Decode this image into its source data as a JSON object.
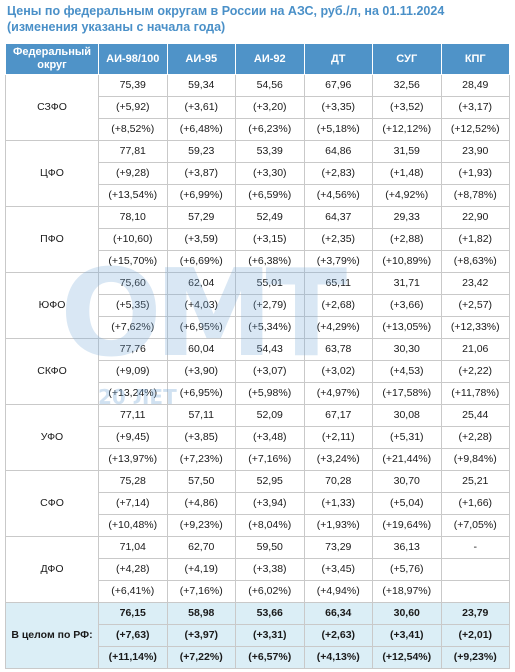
{
  "title": {
    "line1": "Цены по федеральным округам в России на АЗС, руб./л, на 01.11.2024",
    "line2": "(изменения указаны с начала года)"
  },
  "watermark": {
    "logo": "ОМТ",
    "years": "20 ЛЕТ"
  },
  "table": {
    "headers": [
      "Федеральный округ",
      "АИ-98/100",
      "АИ-95",
      "АИ-92",
      "ДТ",
      "СУГ",
      "КПГ"
    ],
    "rows": [
      {
        "region": "СЗФО",
        "cells": [
          {
            "price": "75,39",
            "abs": "(+5,92)",
            "pct": "(+8,52%)"
          },
          {
            "price": "59,34",
            "abs": "(+3,61)",
            "pct": "(+6,48%)"
          },
          {
            "price": "54,56",
            "abs": "(+3,20)",
            "pct": "(+6,23%)"
          },
          {
            "price": "67,96",
            "abs": "(+3,35)",
            "pct": "(+5,18%)"
          },
          {
            "price": "32,56",
            "abs": "(+3,52)",
            "pct": "(+12,12%)"
          },
          {
            "price": "28,49",
            "abs": "(+3,17)",
            "pct": "(+12,52%)"
          }
        ]
      },
      {
        "region": "ЦФО",
        "cells": [
          {
            "price": "77,81",
            "abs": "(+9,28)",
            "pct": "(+13,54%)"
          },
          {
            "price": "59,23",
            "abs": "(+3,87)",
            "pct": "(+6,99%)"
          },
          {
            "price": "53,39",
            "abs": "(+3,30)",
            "pct": "(+6,59%)"
          },
          {
            "price": "64,86",
            "abs": "(+2,83)",
            "pct": "(+4,56%)"
          },
          {
            "price": "31,59",
            "abs": "(+1,48)",
            "pct": "(+4,92%)"
          },
          {
            "price": "23,90",
            "abs": "(+1,93)",
            "pct": "(+8,78%)"
          }
        ]
      },
      {
        "region": "ПФО",
        "cells": [
          {
            "price": "78,10",
            "abs": "(+10,60)",
            "pct": "(+15,70%)"
          },
          {
            "price": "57,29",
            "abs": "(+3,59)",
            "pct": "(+6,69%)"
          },
          {
            "price": "52,49",
            "abs": "(+3,15)",
            "pct": "(+6,38%)"
          },
          {
            "price": "64,37",
            "abs": "(+2,35)",
            "pct": "(+3,79%)"
          },
          {
            "price": "29,33",
            "abs": "(+2,88)",
            "pct": "(+10,89%)"
          },
          {
            "price": "22,90",
            "abs": "(+1,82)",
            "pct": "(+8,63%)"
          }
        ]
      },
      {
        "region": "ЮФО",
        "cells": [
          {
            "price": "75,60",
            "abs": "(+5,35)",
            "pct": "(+7,62%)"
          },
          {
            "price": "62,04",
            "abs": "(+4,03)",
            "pct": "(+6,95%)"
          },
          {
            "price": "55,01",
            "abs": "(+2,79)",
            "pct": "(+5,34%)"
          },
          {
            "price": "65,11",
            "abs": "(+2,68)",
            "pct": "(+4,29%)"
          },
          {
            "price": "31,71",
            "abs": "(+3,66)",
            "pct": "(+13,05%)"
          },
          {
            "price": "23,42",
            "abs": "(+2,57)",
            "pct": "(+12,33%)"
          }
        ]
      },
      {
        "region": "СКФО",
        "cells": [
          {
            "price": "77,76",
            "abs": "(+9,09)",
            "pct": "(+13,24%)"
          },
          {
            "price": "60,04",
            "abs": "(+3,90)",
            "pct": "(+6,95%)"
          },
          {
            "price": "54,43",
            "abs": "(+3,07)",
            "pct": "(+5,98%)"
          },
          {
            "price": "63,78",
            "abs": "(+3,02)",
            "pct": "(+4,97%)"
          },
          {
            "price": "30,30",
            "abs": "(+4,53)",
            "pct": "(+17,58%)"
          },
          {
            "price": "21,06",
            "abs": "(+2,22)",
            "pct": "(+11,78%)"
          }
        ]
      },
      {
        "region": "УФО",
        "cells": [
          {
            "price": "77,11",
            "abs": "(+9,45)",
            "pct": "(+13,97%)"
          },
          {
            "price": "57,11",
            "abs": "(+3,85)",
            "pct": "(+7,23%)"
          },
          {
            "price": "52,09",
            "abs": "(+3,48)",
            "pct": "(+7,16%)"
          },
          {
            "price": "67,17",
            "abs": "(+2,11)",
            "pct": "(+3,24%)"
          },
          {
            "price": "30,08",
            "abs": "(+5,31)",
            "pct": "(+21,44%)"
          },
          {
            "price": "25,44",
            "abs": "(+2,28)",
            "pct": "(+9,84%)"
          }
        ]
      },
      {
        "region": "СФО",
        "cells": [
          {
            "price": "75,28",
            "abs": "(+7,14)",
            "pct": "(+10,48%)"
          },
          {
            "price": "57,50",
            "abs": "(+4,86)",
            "pct": "(+9,23%)"
          },
          {
            "price": "52,95",
            "abs": "(+3,94)",
            "pct": "(+8,04%)"
          },
          {
            "price": "70,28",
            "abs": "(+1,33)",
            "pct": "(+1,93%)"
          },
          {
            "price": "30,70",
            "abs": "(+5,04)",
            "pct": "(+19,64%)"
          },
          {
            "price": "25,21",
            "abs": "(+1,66)",
            "pct": "(+7,05%)"
          }
        ]
      },
      {
        "region": "ДФО",
        "cells": [
          {
            "price": "71,04",
            "abs": "(+4,28)",
            "pct": "(+6,41%)"
          },
          {
            "price": "62,70",
            "abs": "(+4,19)",
            "pct": "(+7,16%)"
          },
          {
            "price": "59,50",
            "abs": "(+3,38)",
            "pct": "(+6,02%)"
          },
          {
            "price": "73,29",
            "abs": "(+3,45)",
            "pct": "(+4,94%)"
          },
          {
            "price": "36,13",
            "abs": "(+5,76)",
            "pct": "(+18,97%)"
          },
          {
            "price": "-",
            "abs": "",
            "pct": ""
          }
        ]
      }
    ],
    "total": {
      "region": "В целом по РФ:",
      "cells": [
        {
          "price": "76,15",
          "abs": "(+7,63)",
          "pct": "(+11,14%)"
        },
        {
          "price": "58,98",
          "abs": "(+3,97)",
          "pct": "(+7,22%)"
        },
        {
          "price": "53,66",
          "abs": "(+3,31)",
          "pct": "(+6,57%)"
        },
        {
          "price": "66,34",
          "abs": "(+2,63)",
          "pct": "(+4,13%)"
        },
        {
          "price": "30,60",
          "abs": "(+3,41)",
          "pct": "(+12,54%)"
        },
        {
          "price": "23,79",
          "abs": "(+2,01)",
          "pct": "(+9,23%)"
        }
      ]
    }
  },
  "colors": {
    "header_bg": "#4f93c8",
    "title": "#4a90c8",
    "change": "#3fa64a",
    "total_bg": "#dbeef6",
    "border": "#c9c9c9"
  }
}
